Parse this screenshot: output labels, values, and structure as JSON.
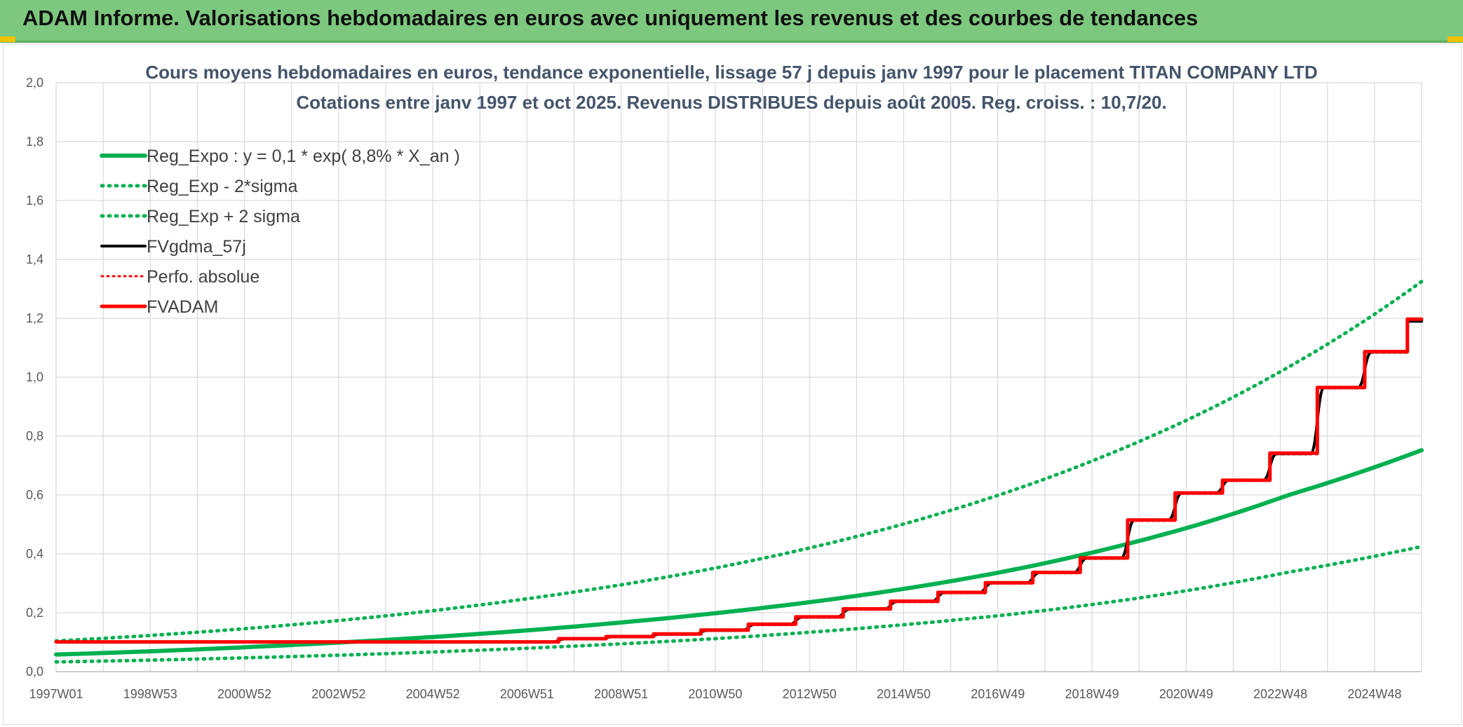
{
  "header": {
    "title": "ADAM Informe. Valorisations hebdomadaires en euros avec uniquement les revenus et des courbes de tendances",
    "bar_color": "#7dc87f"
  },
  "chart_data": {
    "type": "line",
    "title_line1": "Cours moyens hebdomadaires en euros, tendance exponentielle, lissage 57 j depuis janv 1997 pour le placement TITAN COMPANY LTD",
    "title_line2": "Cotations entre janv 1997 et oct 2025. Revenus DISTRIBUES depuis août 2005. Reg. croiss. : 10,7/20.",
    "xlabel": "",
    "ylabel": "",
    "x_tick_labels": [
      "1997W01",
      "1998W53",
      "2000W52",
      "2002W52",
      "2004W52",
      "2006W51",
      "2008W51",
      "2010W50",
      "2012W50",
      "2014W50",
      "2016W49",
      "2018W49",
      "2020W49",
      "2022W48",
      "2024W48"
    ],
    "x_range": [
      1997.0,
      2025.8
    ],
    "ylim": [
      0,
      2.0
    ],
    "y_ticks": [
      "0,0",
      "0,2",
      "0,4",
      "0,6",
      "0,8",
      "1,0",
      "1,2",
      "1,4",
      "1,6",
      "1,8",
      "2,0"
    ],
    "grid": true,
    "legend_position": "top-left",
    "regression_label": "Reg_Expo : y = 0,1 * exp( 8,8% *  X_an )",
    "series": [
      {
        "name": "Reg_Expo : y = 0,1 * exp( 8,8% *  X_an )",
        "color": "#00b050",
        "style": "solid",
        "x": [
          1997,
          1999,
          2001,
          2003,
          2005,
          2007,
          2009,
          2011,
          2013,
          2015,
          2017,
          2019,
          2021,
          2023,
          2025.8
        ],
        "values": [
          0.058,
          0.069,
          0.083,
          0.099,
          0.118,
          0.141,
          0.168,
          0.2,
          0.238,
          0.284,
          0.34,
          0.41,
          0.495,
          0.6,
          0.752
        ]
      },
      {
        "name": "Reg_Exp - 2*sigma",
        "color": "#00b050",
        "style": "dotted",
        "x": [
          1997,
          1999,
          2001,
          2003,
          2005,
          2007,
          2009,
          2011,
          2013,
          2015,
          2017,
          2019,
          2021,
          2023,
          2025.8
        ],
        "values": [
          0.033,
          0.039,
          0.047,
          0.056,
          0.067,
          0.08,
          0.095,
          0.113,
          0.135,
          0.161,
          0.192,
          0.231,
          0.279,
          0.338,
          0.425
        ]
      },
      {
        "name": "Reg_Exp + 2 sigma",
        "color": "#00b050",
        "style": "dotted",
        "x": [
          1997,
          1999,
          2001,
          2003,
          2005,
          2007,
          2009,
          2011,
          2013,
          2015,
          2017,
          2019,
          2021,
          2023,
          2025.8
        ],
        "values": [
          0.104,
          0.123,
          0.146,
          0.174,
          0.208,
          0.249,
          0.297,
          0.355,
          0.424,
          0.507,
          0.606,
          0.725,
          0.866,
          1.035,
          1.325
        ]
      },
      {
        "name": "FVgdma_57j",
        "color": "#000000",
        "style": "solid",
        "x": [
          1997,
          2005.6,
          2007.6,
          2008.6,
          2009.6,
          2010.6,
          2011.6,
          2012.6,
          2013.6,
          2014.6,
          2015.6,
          2016.6,
          2017.6,
          2018.6,
          2019.6,
          2020.6,
          2021.6,
          2022.6,
          2023.6,
          2024.6,
          2025.8
        ],
        "values": [
          0.101,
          0.101,
          0.111,
          0.118,
          0.127,
          0.14,
          0.16,
          0.185,
          0.212,
          0.238,
          0.268,
          0.301,
          0.336,
          0.385,
          0.515,
          0.607,
          0.65,
          0.74,
          0.965,
          1.085,
          1.19
        ]
      },
      {
        "name": "Perfo. absolue",
        "color": "#ff0000",
        "style": "dotted",
        "x": [
          1997,
          2005.6,
          2007.6,
          2008.6,
          2009.6,
          2010.6,
          2011.6,
          2012.6,
          2013.6,
          2014.6,
          2015.6,
          2016.6,
          2017.6,
          2018.6,
          2019.6,
          2020.6,
          2021.6,
          2022.6,
          2023.6,
          2024.6,
          2025.8
        ],
        "values": [
          0.101,
          0.101,
          0.11,
          0.117,
          0.126,
          0.139,
          0.158,
          0.183,
          0.21,
          0.236,
          0.266,
          0.299,
          0.334,
          0.383,
          0.512,
          0.604,
          0.648,
          0.738,
          0.962,
          1.083,
          1.195
        ]
      },
      {
        "name": "FVADAM",
        "color": "#ff0000",
        "style": "solid",
        "x": [
          1997,
          2005.6,
          2007.6,
          2008.6,
          2009.6,
          2010.6,
          2011.6,
          2012.6,
          2013.6,
          2014.6,
          2015.6,
          2016.6,
          2017.6,
          2018.6,
          2019.6,
          2020.6,
          2021.6,
          2022.6,
          2023.6,
          2024.6,
          2025.8
        ],
        "values": [
          0.101,
          0.101,
          0.112,
          0.119,
          0.128,
          0.141,
          0.161,
          0.186,
          0.213,
          0.239,
          0.269,
          0.302,
          0.337,
          0.386,
          0.515,
          0.607,
          0.65,
          0.742,
          0.965,
          1.087,
          1.197
        ]
      }
    ]
  }
}
